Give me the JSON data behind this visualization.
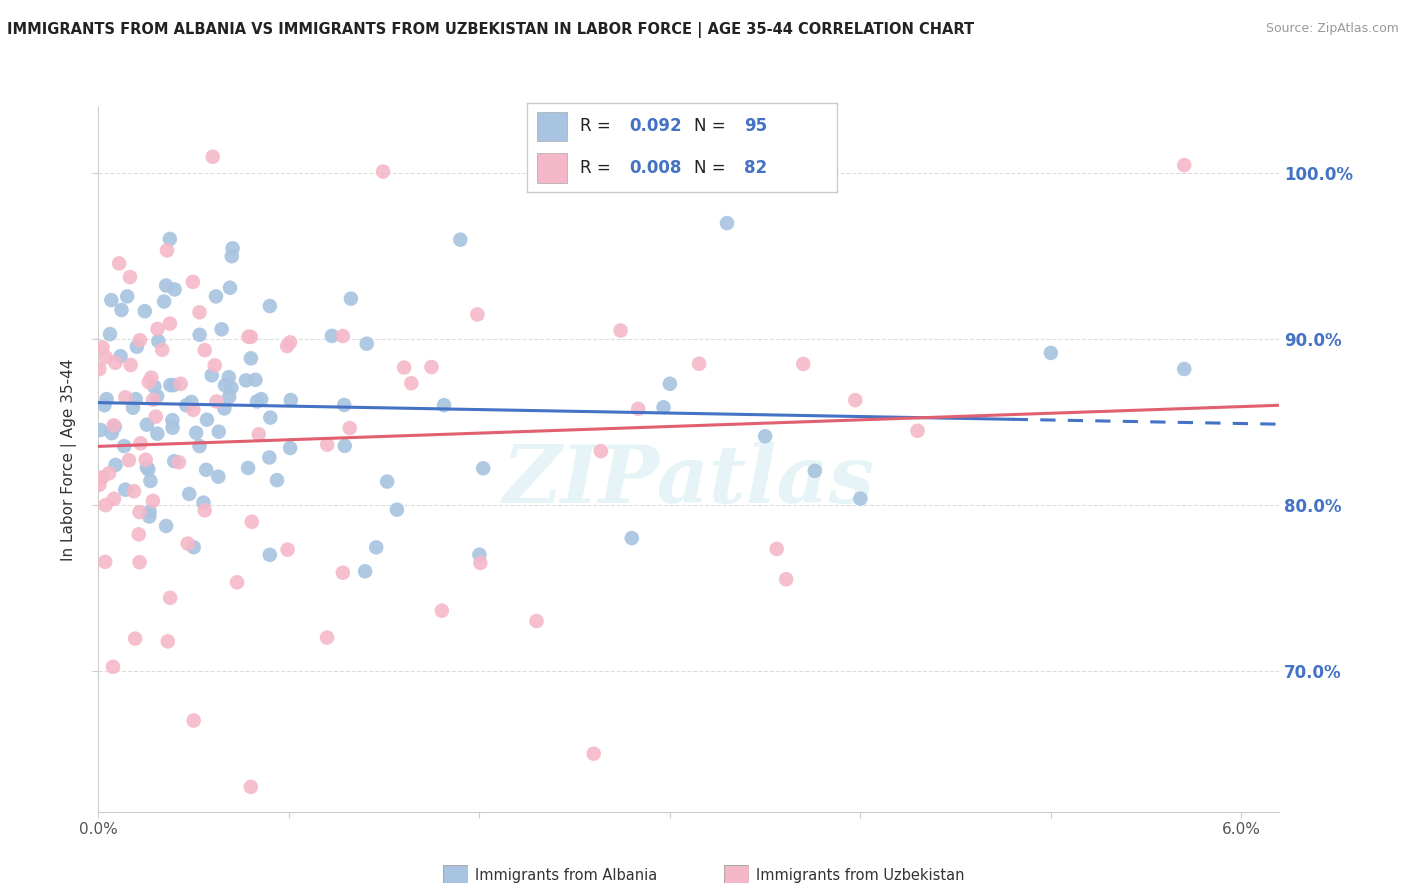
{
  "title": "IMMIGRANTS FROM ALBANIA VS IMMIGRANTS FROM UZBEKISTAN IN LABOR FORCE | AGE 35-44 CORRELATION CHART",
  "source": "Source: ZipAtlas.com",
  "ylabel": "In Labor Force | Age 35-44",
  "y_ticks": [
    "70.0%",
    "80.0%",
    "90.0%",
    "100.0%"
  ],
  "y_tick_vals": [
    0.7,
    0.8,
    0.9,
    1.0
  ],
  "x_range": [
    0.0,
    0.062
  ],
  "y_range": [
    0.615,
    1.04
  ],
  "albania_R": "0.092",
  "albania_N": "95",
  "uzbekistan_R": "0.008",
  "uzbekistan_N": "82",
  "albania_color": "#a8c4e0",
  "albania_line_color": "#4472c4",
  "uzbekistan_color": "#f4b8c8",
  "uzbekistan_line_color": "#e06070",
  "legend_label_albania": "Immigrants from Albania",
  "legend_label_uzbekistan": "Immigrants from Uzbekistan",
  "background_color": "#ffffff",
  "watermark": "ZIPatlas"
}
